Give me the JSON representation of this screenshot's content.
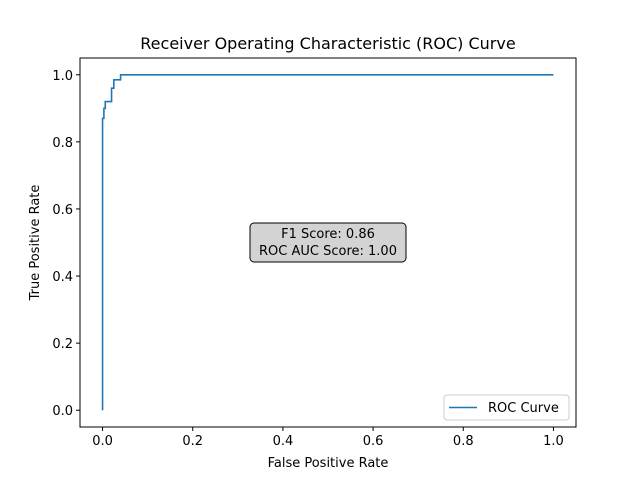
{
  "chart_data": {
    "type": "line",
    "title": "Receiver Operating Characteristic (ROC) Curve",
    "xlabel": "False Positive Rate",
    "ylabel": "True Positive Rate",
    "xlim": [
      -0.05,
      1.05
    ],
    "ylim": [
      -0.05,
      1.05
    ],
    "xticks": [
      0.0,
      0.2,
      0.4,
      0.6,
      0.8,
      1.0
    ],
    "yticks": [
      0.0,
      0.2,
      0.4,
      0.6,
      0.8,
      1.0
    ],
    "tick_labels": [
      "0.0",
      "0.2",
      "0.4",
      "0.6",
      "0.8",
      "1.0"
    ],
    "grid": false,
    "legend": {
      "position": "lower-right",
      "entries": [
        "ROC Curve"
      ]
    },
    "annotation": {
      "lines": [
        "F1 Score: 0.86",
        "ROC AUC Score: 1.00"
      ],
      "x": 0.5,
      "y": 0.5
    },
    "series": [
      {
        "name": "ROC Curve",
        "color": "#1f77b4",
        "x": [
          0.0,
          0.0,
          0.0,
          0.003,
          0.003,
          0.006,
          0.006,
          0.01,
          0.01,
          0.02,
          0.02,
          0.025,
          0.025,
          0.04,
          0.04,
          1.0
        ],
        "y": [
          0.0,
          0.84,
          0.87,
          0.87,
          0.9,
          0.9,
          0.92,
          0.92,
          0.92,
          0.92,
          0.96,
          0.96,
          0.985,
          0.985,
          1.0,
          1.0
        ]
      }
    ]
  }
}
